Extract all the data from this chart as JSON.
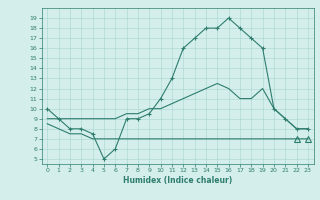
{
  "xlabel": "Humidex (Indice chaleur)",
  "x": [
    0,
    1,
    2,
    3,
    4,
    5,
    6,
    7,
    8,
    9,
    10,
    11,
    12,
    13,
    14,
    15,
    16,
    17,
    18,
    19,
    20,
    21,
    22,
    23
  ],
  "line1": [
    10,
    9,
    8,
    8,
    7.5,
    5,
    6,
    9,
    9,
    9.5,
    11,
    13,
    16,
    17,
    18,
    18,
    19,
    18,
    17,
    16,
    10,
    9,
    8,
    8
  ],
  "line2": [
    8.5,
    8,
    7.5,
    7.5,
    7,
    7,
    7,
    7,
    7,
    7,
    7,
    7,
    7,
    7,
    7,
    7,
    7,
    7,
    7,
    7,
    7,
    7,
    7,
    7
  ],
  "line3": [
    9,
    9,
    9,
    9,
    9,
    9,
    9,
    9.5,
    9.5,
    10,
    10,
    10.5,
    11,
    11.5,
    12,
    12.5,
    12,
    11,
    11,
    12,
    10,
    9,
    8,
    8
  ],
  "color": "#2e7d6e",
  "bg_color": "#d4eeeb",
  "grid_color": "#a8d4d0",
  "ylim": [
    4.5,
    20
  ],
  "xlim": [
    -0.5,
    23.5
  ],
  "yticks": [
    5,
    6,
    7,
    8,
    9,
    10,
    11,
    12,
    13,
    14,
    15,
    16,
    17,
    18,
    19
  ],
  "xticks": [
    0,
    1,
    2,
    3,
    4,
    5,
    6,
    7,
    8,
    9,
    10,
    11,
    12,
    13,
    14,
    15,
    16,
    17,
    18,
    19,
    20,
    21,
    22,
    23
  ]
}
